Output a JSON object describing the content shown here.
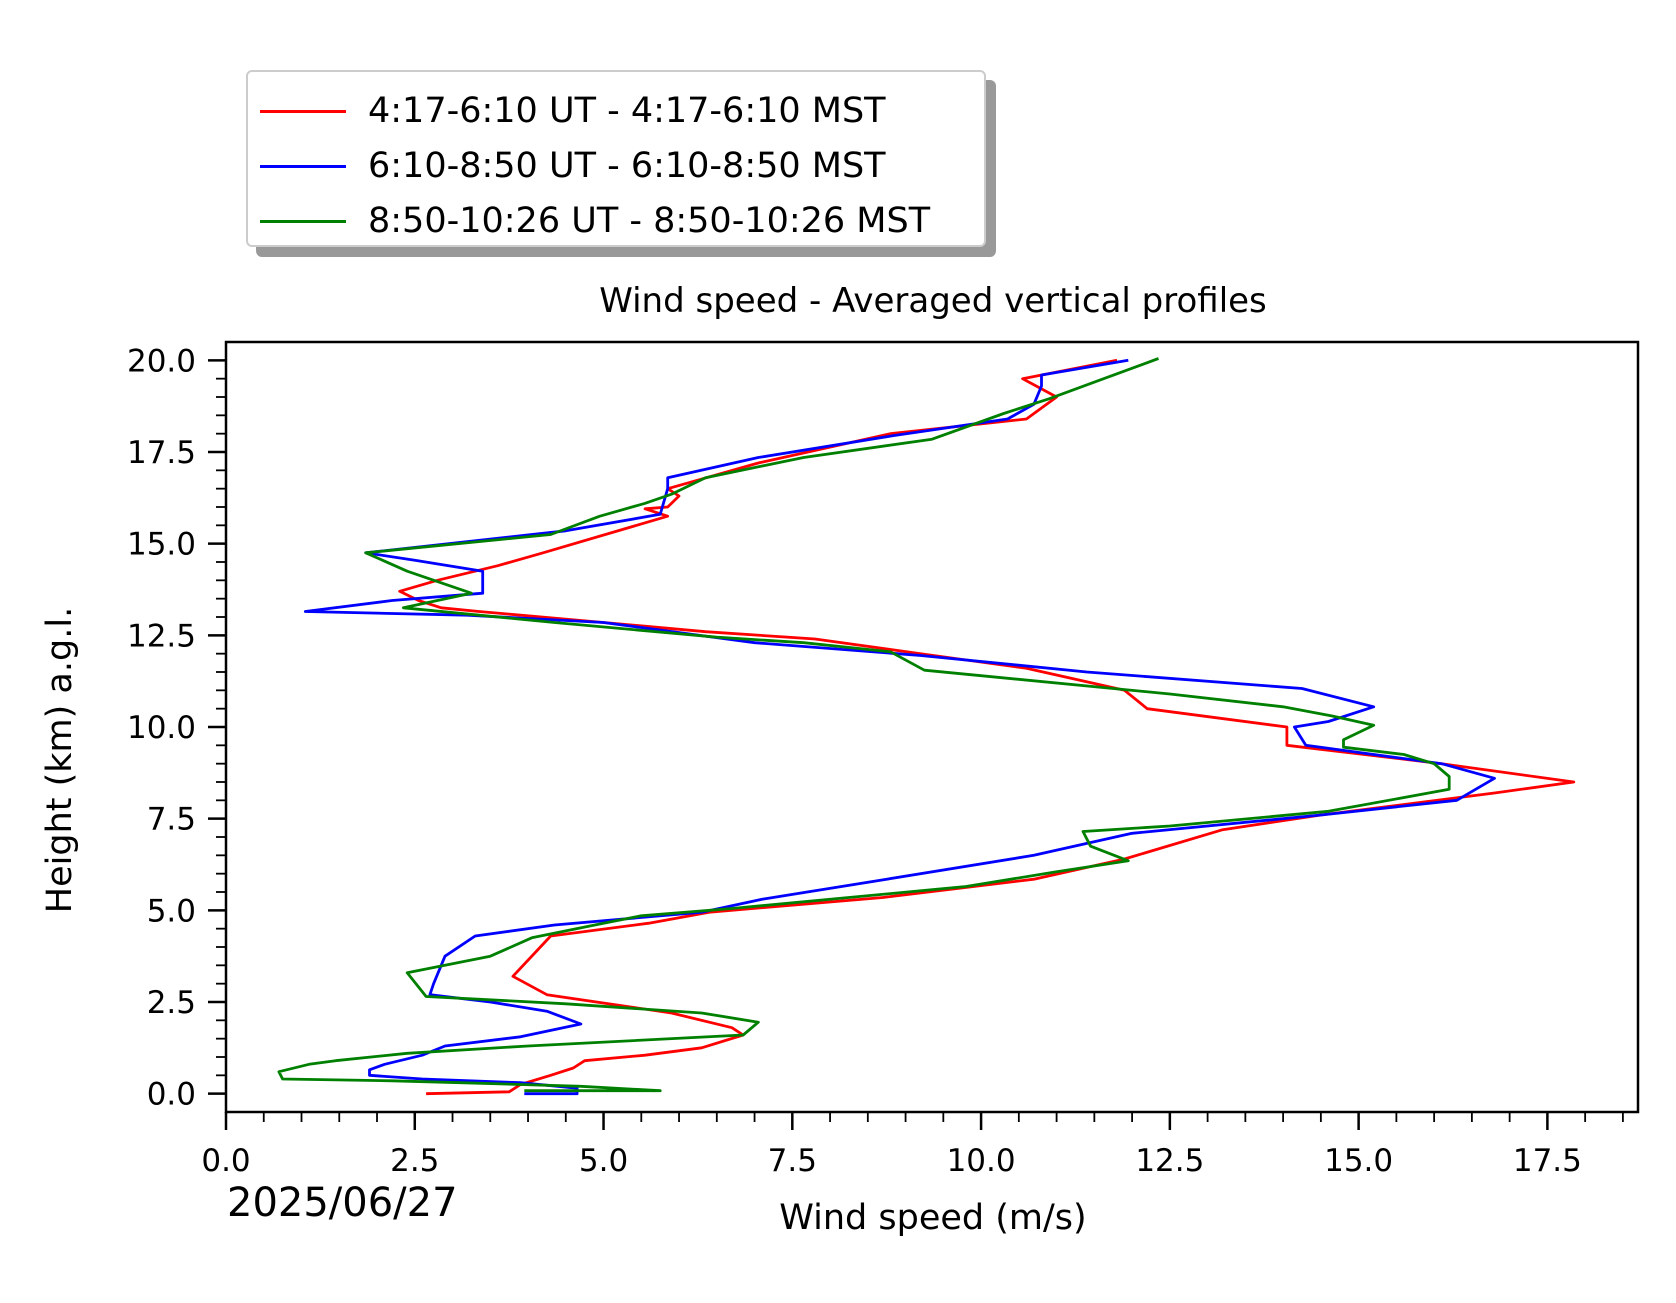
{
  "chart_data": {
    "type": "line",
    "title": "Wind speed - Averaged vertical profiles",
    "xlabel": "Wind speed (m/s)",
    "ylabel": "Height (km) a.g.l.",
    "date": "2025/06/27",
    "xlim": [
      0,
      18.7
    ],
    "ylim": [
      -0.5,
      20.5
    ],
    "x_ticks": [
      "0.0",
      "2.5",
      "5.0",
      "7.5",
      "10.0",
      "12.5",
      "15.0",
      "17.5"
    ],
    "y_ticks": [
      "0.0",
      "2.5",
      "5.0",
      "7.5",
      "10.0",
      "12.5",
      "15.0",
      "17.5",
      "20.0"
    ],
    "grid": false,
    "legend_position": "top-left above plot",
    "series": [
      {
        "name": "4:17-6:10 UT - 4:17-6:10 MST",
        "color": "#ff0000",
        "points": [
          [
            2.65,
            0.0
          ],
          [
            3.75,
            0.05
          ],
          [
            3.9,
            0.25
          ],
          [
            4.3,
            0.5
          ],
          [
            4.6,
            0.7
          ],
          [
            4.75,
            0.9
          ],
          [
            5.55,
            1.05
          ],
          [
            6.3,
            1.25
          ],
          [
            6.85,
            1.6
          ],
          [
            6.7,
            1.8
          ],
          [
            5.9,
            2.2
          ],
          [
            4.25,
            2.7
          ],
          [
            3.8,
            3.2
          ],
          [
            4.3,
            4.3
          ],
          [
            5.6,
            4.65
          ],
          [
            6.4,
            4.95
          ],
          [
            8.7,
            5.35
          ],
          [
            10.7,
            5.85
          ],
          [
            11.9,
            6.4
          ],
          [
            13.2,
            7.2
          ],
          [
            14.5,
            7.6
          ],
          [
            16.8,
            8.2
          ],
          [
            17.85,
            8.5
          ],
          [
            16.1,
            9.0
          ],
          [
            14.05,
            9.5
          ],
          [
            14.05,
            10.0
          ],
          [
            12.2,
            10.5
          ],
          [
            11.9,
            11.0
          ],
          [
            10.6,
            11.6
          ],
          [
            9.2,
            12.0
          ],
          [
            7.8,
            12.4
          ],
          [
            6.35,
            12.6
          ],
          [
            5.0,
            12.85
          ],
          [
            3.35,
            13.15
          ],
          [
            2.85,
            13.25
          ],
          [
            2.55,
            13.45
          ],
          [
            2.3,
            13.7
          ],
          [
            2.8,
            14.0
          ],
          [
            3.6,
            14.4
          ],
          [
            4.2,
            14.75
          ],
          [
            5.85,
            15.75
          ],
          [
            5.55,
            15.95
          ],
          [
            5.85,
            16.0
          ],
          [
            6.0,
            16.3
          ],
          [
            5.85,
            16.5
          ],
          [
            7.05,
            17.2
          ],
          [
            8.8,
            18.0
          ],
          [
            10.6,
            18.4
          ],
          [
            11.0,
            19.0
          ],
          [
            10.55,
            19.5
          ],
          [
            11.8,
            20.0
          ]
        ]
      },
      {
        "name": "6:10-8:50 UT - 6:10-8:50 MST",
        "color": "#0000ff",
        "points": [
          [
            3.95,
            0.0
          ],
          [
            4.65,
            0.0
          ],
          [
            4.65,
            0.15
          ],
          [
            3.9,
            0.3
          ],
          [
            2.6,
            0.4
          ],
          [
            1.9,
            0.5
          ],
          [
            1.9,
            0.65
          ],
          [
            2.1,
            0.8
          ],
          [
            2.6,
            1.05
          ],
          [
            2.9,
            1.3
          ],
          [
            3.9,
            1.55
          ],
          [
            4.7,
            1.9
          ],
          [
            4.25,
            2.25
          ],
          [
            3.5,
            2.5
          ],
          [
            2.7,
            2.7
          ],
          [
            2.75,
            3.0
          ],
          [
            2.9,
            3.75
          ],
          [
            3.3,
            4.3
          ],
          [
            4.35,
            4.6
          ],
          [
            6.3,
            4.95
          ],
          [
            7.1,
            5.3
          ],
          [
            8.75,
            5.85
          ],
          [
            10.7,
            6.5
          ],
          [
            12.0,
            7.1
          ],
          [
            14.5,
            7.6
          ],
          [
            16.3,
            8.0
          ],
          [
            16.8,
            8.6
          ],
          [
            16.1,
            9.0
          ],
          [
            14.3,
            9.5
          ],
          [
            14.15,
            10.0
          ],
          [
            14.6,
            10.15
          ],
          [
            15.2,
            10.55
          ],
          [
            14.25,
            11.05
          ],
          [
            11.4,
            11.5
          ],
          [
            9.2,
            11.95
          ],
          [
            7.0,
            12.3
          ],
          [
            5.0,
            12.85
          ],
          [
            3.2,
            13.05
          ],
          [
            1.05,
            13.15
          ],
          [
            2.2,
            13.45
          ],
          [
            3.4,
            13.65
          ],
          [
            3.4,
            14.25
          ],
          [
            2.5,
            14.55
          ],
          [
            1.85,
            14.75
          ],
          [
            4.5,
            15.35
          ],
          [
            5.75,
            15.8
          ],
          [
            5.85,
            16.5
          ],
          [
            5.85,
            16.8
          ],
          [
            7.05,
            17.35
          ],
          [
            8.85,
            17.95
          ],
          [
            10.35,
            18.4
          ],
          [
            10.7,
            18.8
          ],
          [
            10.8,
            19.3
          ],
          [
            10.8,
            19.6
          ],
          [
            11.95,
            20.0
          ]
        ]
      },
      {
        "name": "8:50-10:26 UT - 8:50-10:26 MST",
        "color": "#008000",
        "points": [
          [
            3.95,
            0.08
          ],
          [
            5.75,
            0.08
          ],
          [
            4.7,
            0.2
          ],
          [
            3.1,
            0.3
          ],
          [
            2.2,
            0.35
          ],
          [
            0.75,
            0.4
          ],
          [
            0.7,
            0.6
          ],
          [
            1.1,
            0.8
          ],
          [
            1.45,
            0.9
          ],
          [
            2.4,
            1.1
          ],
          [
            4.0,
            1.3
          ],
          [
            6.85,
            1.6
          ],
          [
            7.05,
            1.95
          ],
          [
            6.3,
            2.2
          ],
          [
            4.5,
            2.45
          ],
          [
            2.65,
            2.65
          ],
          [
            2.4,
            3.3
          ],
          [
            3.5,
            3.75
          ],
          [
            4.05,
            4.25
          ],
          [
            5.0,
            4.65
          ],
          [
            5.5,
            4.85
          ],
          [
            6.7,
            5.05
          ],
          [
            9.8,
            5.65
          ],
          [
            11.0,
            6.05
          ],
          [
            11.95,
            6.35
          ],
          [
            11.45,
            6.75
          ],
          [
            11.35,
            7.15
          ],
          [
            12.5,
            7.3
          ],
          [
            14.6,
            7.7
          ],
          [
            16.2,
            8.3
          ],
          [
            16.2,
            8.65
          ],
          [
            16.0,
            9.0
          ],
          [
            15.6,
            9.25
          ],
          [
            14.8,
            9.45
          ],
          [
            14.8,
            9.65
          ],
          [
            15.2,
            10.05
          ],
          [
            14.65,
            10.3
          ],
          [
            14.0,
            10.55
          ],
          [
            12.5,
            10.9
          ],
          [
            9.25,
            11.55
          ],
          [
            8.8,
            12.05
          ],
          [
            7.65,
            12.3
          ],
          [
            6.5,
            12.45
          ],
          [
            4.35,
            12.85
          ],
          [
            2.35,
            13.25
          ],
          [
            3.25,
            13.65
          ],
          [
            2.4,
            14.25
          ],
          [
            1.85,
            14.75
          ],
          [
            4.3,
            15.25
          ],
          [
            4.95,
            15.75
          ],
          [
            5.55,
            16.1
          ],
          [
            5.9,
            16.35
          ],
          [
            6.35,
            16.8
          ],
          [
            7.65,
            17.35
          ],
          [
            9.35,
            17.85
          ],
          [
            10.3,
            18.55
          ],
          [
            10.9,
            18.95
          ],
          [
            12.35,
            20.05
          ]
        ]
      }
    ]
  }
}
